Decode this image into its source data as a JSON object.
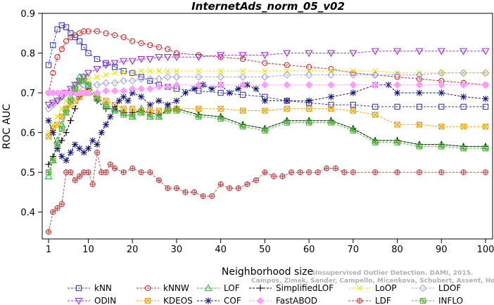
{
  "chart_data": {
    "type": "line",
    "title": "InternetAds_norm_05_v02",
    "xlabel": "Neighborhood size",
    "ylabel": "ROC AUC",
    "xlim": [
      1,
      100
    ],
    "ylim": [
      0.35,
      0.9
    ],
    "xticks": [
      1,
      10,
      20,
      30,
      40,
      50,
      60,
      70,
      80,
      90,
      100
    ],
    "yticks": [
      0.4,
      0.5,
      0.6,
      0.7,
      0.8,
      0.9
    ],
    "legend_position": "bottom",
    "watermark": [
      "Unsupervised Outlier Detection. DAMI, 2015.",
      "Campos, Zimek, Sander, Campello, Micenkova, Schubert, Assent, Houle"
    ],
    "series": [
      {
        "name": "kNN",
        "color": "#3a3acc",
        "marker": "square",
        "x": [
          1,
          2,
          3,
          4,
          5,
          6,
          7,
          8,
          9,
          10,
          12,
          14,
          16,
          18,
          20,
          22,
          24,
          26,
          28,
          30,
          35,
          40,
          45,
          50,
          55,
          60,
          65,
          70,
          75,
          80,
          85,
          90,
          95,
          100
        ],
        "y": [
          0.77,
          0.82,
          0.86,
          0.87,
          0.865,
          0.85,
          0.84,
          0.83,
          0.815,
          0.8,
          0.785,
          0.775,
          0.765,
          0.755,
          0.75,
          0.74,
          0.73,
          0.72,
          0.715,
          0.71,
          0.705,
          0.7,
          0.695,
          0.69,
          0.68,
          0.675,
          0.67,
          0.67,
          0.665,
          0.665,
          0.665,
          0.665,
          0.665,
          0.665
        ]
      },
      {
        "name": "kNNW",
        "color": "#e0282d",
        "marker": "circle",
        "x": [
          1,
          2,
          3,
          4,
          5,
          6,
          7,
          8,
          9,
          10,
          12,
          14,
          16,
          18,
          20,
          22,
          24,
          26,
          28,
          30,
          35,
          40,
          45,
          50,
          55,
          60,
          65,
          70,
          75,
          80,
          85,
          90,
          95,
          100
        ],
        "y": [
          0.7,
          0.75,
          0.79,
          0.81,
          0.83,
          0.84,
          0.845,
          0.85,
          0.855,
          0.855,
          0.855,
          0.85,
          0.845,
          0.84,
          0.83,
          0.825,
          0.82,
          0.815,
          0.81,
          0.8,
          0.795,
          0.79,
          0.785,
          0.775,
          0.77,
          0.765,
          0.76,
          0.75,
          0.745,
          0.74,
          0.735,
          0.73,
          0.725,
          0.72
        ]
      },
      {
        "name": "LOF",
        "color": "#2fbf2f",
        "marker": "triangle-up",
        "x": [
          1,
          2,
          3,
          4,
          5,
          6,
          7,
          8,
          9,
          10,
          12,
          14,
          16,
          18,
          20,
          22,
          24,
          26,
          28,
          30,
          35,
          40,
          45,
          50,
          55,
          60,
          65,
          70,
          75,
          80,
          85,
          90,
          95,
          100
        ],
        "y": [
          0.49,
          0.53,
          0.58,
          0.62,
          0.66,
          0.69,
          0.72,
          0.74,
          0.74,
          0.72,
          0.69,
          0.67,
          0.66,
          0.65,
          0.64,
          0.66,
          0.64,
          0.64,
          0.66,
          0.66,
          0.645,
          0.64,
          0.62,
          0.61,
          0.63,
          0.63,
          0.63,
          0.61,
          0.58,
          0.58,
          0.57,
          0.57,
          0.565,
          0.565
        ]
      },
      {
        "name": "SimplifiedLOF",
        "color": "#000000",
        "marker": "plus",
        "x": [
          1,
          2,
          3,
          4,
          5,
          6,
          7,
          8,
          9,
          10,
          12,
          14,
          16,
          18,
          20,
          22,
          24,
          26,
          28,
          30,
          35,
          40,
          45,
          50,
          55,
          60,
          65,
          70,
          75,
          80,
          85,
          90,
          95,
          100
        ],
        "y": [
          0.52,
          0.54,
          0.56,
          0.58,
          0.6,
          0.63,
          0.66,
          0.69,
          0.7,
          0.71,
          0.68,
          0.66,
          0.66,
          0.65,
          0.65,
          0.655,
          0.65,
          0.645,
          0.655,
          0.66,
          0.645,
          0.64,
          0.62,
          0.61,
          0.63,
          0.63,
          0.63,
          0.61,
          0.58,
          0.58,
          0.57,
          0.57,
          0.565,
          0.565
        ]
      },
      {
        "name": "LoOP",
        "color": "#e6e600",
        "marker": "x",
        "x": [
          1,
          2,
          3,
          4,
          5,
          6,
          7,
          8,
          9,
          10,
          12,
          14,
          16,
          18,
          20,
          22,
          24,
          26,
          28,
          30,
          35,
          40,
          45,
          50,
          55,
          60,
          65,
          70,
          75,
          80,
          85,
          90,
          95,
          100
        ],
        "y": [
          0.6,
          0.62,
          0.64,
          0.66,
          0.68,
          0.7,
          0.71,
          0.72,
          0.73,
          0.735,
          0.74,
          0.745,
          0.75,
          0.75,
          0.75,
          0.755,
          0.755,
          0.755,
          0.755,
          0.755,
          0.755,
          0.755,
          0.755,
          0.755,
          0.755,
          0.755,
          0.755,
          0.755,
          0.755,
          0.75,
          0.75,
          0.75,
          0.75,
          0.75
        ]
      },
      {
        "name": "LDOF",
        "color": "#a3a3d9",
        "marker": "diamond",
        "x": [
          1,
          2,
          3,
          4,
          5,
          6,
          7,
          8,
          9,
          10,
          12,
          14,
          16,
          18,
          20,
          22,
          24,
          26,
          28,
          30,
          35,
          40,
          45,
          50,
          55,
          60,
          65,
          70,
          75,
          80,
          85,
          90,
          95,
          100
        ],
        "y": [
          0.66,
          0.67,
          0.68,
          0.69,
          0.7,
          0.705,
          0.71,
          0.715,
          0.72,
          0.72,
          0.72,
          0.725,
          0.725,
          0.73,
          0.73,
          0.735,
          0.735,
          0.735,
          0.74,
          0.74,
          0.74,
          0.74,
          0.74,
          0.74,
          0.745,
          0.745,
          0.745,
          0.745,
          0.745,
          0.745,
          0.745,
          0.75,
          0.75,
          0.75
        ]
      },
      {
        "name": "ODIN",
        "color": "#9b30d9",
        "marker": "triangle-down",
        "x": [
          1,
          2,
          3,
          4,
          5,
          6,
          7,
          8,
          9,
          10,
          12,
          14,
          16,
          18,
          20,
          22,
          24,
          26,
          28,
          30,
          35,
          40,
          45,
          50,
          55,
          60,
          65,
          70,
          75,
          80,
          85,
          90,
          95,
          100
        ],
        "y": [
          0.67,
          0.675,
          0.68,
          0.69,
          0.7,
          0.71,
          0.72,
          0.73,
          0.74,
          0.75,
          0.76,
          0.77,
          0.775,
          0.78,
          0.78,
          0.785,
          0.785,
          0.79,
          0.79,
          0.79,
          0.79,
          0.795,
          0.795,
          0.795,
          0.8,
          0.8,
          0.8,
          0.8,
          0.805,
          0.805,
          0.805,
          0.805,
          0.805,
          0.805
        ]
      },
      {
        "name": "KDEOS",
        "color": "#f0a000",
        "marker": "square-x",
        "x": [
          1,
          2,
          3,
          4,
          5,
          6,
          7,
          8,
          9,
          10,
          12,
          14,
          16,
          18,
          20,
          22,
          24,
          26,
          28,
          30,
          35,
          40,
          45,
          50,
          55,
          60,
          65,
          70,
          75,
          80,
          85,
          90,
          95,
          100
        ],
        "y": [
          0.59,
          0.61,
          0.62,
          0.64,
          0.66,
          0.67,
          0.68,
          0.69,
          0.7,
          0.7,
          0.695,
          0.68,
          0.67,
          0.66,
          0.66,
          0.655,
          0.655,
          0.655,
          0.66,
          0.66,
          0.66,
          0.66,
          0.655,
          0.655,
          0.66,
          0.66,
          0.66,
          0.655,
          0.645,
          0.62,
          0.62,
          0.615,
          0.615,
          0.615
        ]
      },
      {
        "name": "COF",
        "color": "#14147a",
        "marker": "asterisk",
        "x": [
          1,
          2,
          3,
          4,
          5,
          6,
          7,
          8,
          9,
          10,
          11,
          12,
          13,
          14,
          15,
          16,
          17,
          18,
          19,
          20,
          22,
          24,
          26,
          28,
          30,
          32,
          34,
          36,
          38,
          40,
          42,
          44,
          46,
          48,
          50,
          55,
          60,
          65,
          70,
          75,
          78,
          80,
          85,
          90,
          95,
          100
        ],
        "y": [
          0.63,
          0.6,
          0.56,
          0.54,
          0.53,
          0.55,
          0.57,
          0.56,
          0.55,
          0.56,
          0.58,
          0.57,
          0.6,
          0.62,
          0.64,
          0.66,
          0.68,
          0.69,
          0.68,
          0.7,
          0.69,
          0.67,
          0.68,
          0.67,
          0.68,
          0.7,
          0.71,
          0.72,
          0.71,
          0.72,
          0.7,
          0.71,
          0.72,
          0.71,
          0.68,
          0.68,
          0.68,
          0.69,
          0.7,
          0.72,
          0.72,
          0.7,
          0.7,
          0.7,
          0.69,
          0.685
        ]
      },
      {
        "name": "FastABOD",
        "color": "#ff9cff",
        "marker": "diamond-filled",
        "x": [
          1,
          2,
          3,
          4,
          5,
          6,
          7,
          8,
          9,
          10,
          12,
          14,
          16,
          18,
          20,
          22,
          24,
          26,
          28,
          30,
          35,
          40,
          45,
          50,
          55,
          60,
          65,
          70,
          75,
          80,
          85,
          90,
          95,
          100
        ],
        "y": [
          0.7,
          0.7,
          0.7,
          0.7,
          0.7,
          0.7,
          0.7,
          0.7,
          0.7,
          0.7,
          0.7,
          0.705,
          0.705,
          0.705,
          0.71,
          0.71,
          0.71,
          0.715,
          0.715,
          0.72,
          0.72,
          0.72,
          0.72,
          0.72,
          0.72,
          0.72,
          0.72,
          0.72,
          0.72,
          0.72,
          0.72,
          0.72,
          0.72,
          0.72
        ]
      },
      {
        "name": "LDF",
        "color": "#c04848",
        "marker": "circle-plus",
        "x": [
          1,
          2,
          3,
          4,
          5,
          6,
          7,
          8,
          9,
          10,
          11,
          12,
          13,
          14,
          15,
          16,
          18,
          20,
          22,
          24,
          26,
          28,
          30,
          32,
          34,
          36,
          38,
          40,
          42,
          44,
          46,
          48,
          50,
          52,
          54,
          56,
          58,
          60,
          62,
          64,
          66,
          68,
          70,
          75,
          80,
          85,
          90,
          95,
          100
        ],
        "y": [
          0.35,
          0.4,
          0.41,
          0.42,
          0.5,
          0.5,
          0.48,
          0.49,
          0.5,
          0.5,
          0.47,
          0.55,
          0.5,
          0.5,
          0.52,
          0.51,
          0.5,
          0.51,
          0.5,
          0.5,
          0.48,
          0.46,
          0.46,
          0.45,
          0.45,
          0.44,
          0.44,
          0.47,
          0.46,
          0.46,
          0.47,
          0.48,
          0.5,
          0.49,
          0.49,
          0.5,
          0.5,
          0.5,
          0.5,
          0.51,
          0.51,
          0.5,
          0.5,
          0.5,
          0.5,
          0.5,
          0.5,
          0.5,
          0.5
        ]
      },
      {
        "name": "INFLO",
        "color": "#58b040",
        "marker": "square-star",
        "x": [
          1,
          2,
          3,
          4,
          5,
          6,
          7,
          8,
          9,
          10,
          12,
          14,
          16,
          18,
          20,
          22,
          24,
          26,
          28,
          30,
          35,
          40,
          45,
          50,
          55,
          60,
          65,
          70,
          75,
          80,
          85,
          90,
          95,
          100
        ],
        "y": [
          0.5,
          0.53,
          0.57,
          0.61,
          0.65,
          0.68,
          0.71,
          0.73,
          0.73,
          0.72,
          0.685,
          0.665,
          0.655,
          0.645,
          0.64,
          0.65,
          0.64,
          0.64,
          0.655,
          0.655,
          0.64,
          0.635,
          0.615,
          0.605,
          0.625,
          0.625,
          0.625,
          0.605,
          0.575,
          0.575,
          0.565,
          0.565,
          0.56,
          0.56
        ]
      }
    ]
  }
}
